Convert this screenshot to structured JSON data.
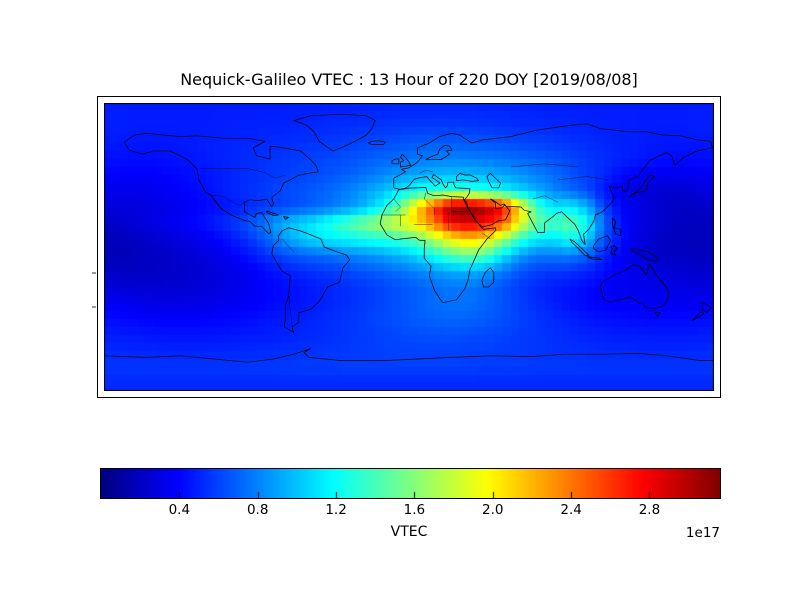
{
  "title": "Nequick-Galileo VTEC : 13 Hour of 220 DOY [2019/08/08]",
  "colorbar": {
    "label": "VTEC",
    "offset_text": "1e17",
    "ticks": [
      "0.4",
      "0.8",
      "1.2",
      "1.6",
      "2.0",
      "2.4",
      "2.8"
    ],
    "tick_values": [
      0.4,
      0.8,
      1.2,
      1.6,
      2.0,
      2.4,
      2.8
    ],
    "vmin": 0,
    "vmax": 3.16,
    "colormap": "jet"
  },
  "chart_data": {
    "type": "heatmap",
    "title": "Nequick-Galileo VTEC : 13 Hour of 220 DOY [2019/08/08]",
    "colormap": "jet",
    "projection": "equirectangular",
    "lon_range": [
      -180,
      180
    ],
    "lat_range": [
      -90,
      90
    ],
    "legend_position": "bottom",
    "grid": false,
    "units": "electrons/m^2, grid values in 1e16",
    "vmin": 0,
    "vmax": 31.6,
    "lon_centers_start": -175,
    "lon_step": 10,
    "lat_centers_start": 85,
    "lat_step": -10,
    "values": [
      [
        4.8,
        4.8,
        4.8,
        4.8,
        4.8,
        4.8,
        4.8,
        4.8,
        4.8,
        4.8,
        4.8,
        4.9,
        4.9,
        5,
        5,
        5.1,
        5.1,
        5.2,
        5.2,
        5.2,
        5.2,
        5.2,
        5.1,
        5.1,
        5,
        5,
        4.9,
        4.9,
        4.8,
        4.8,
        4.8,
        4.8,
        4.8,
        4.8,
        4.8,
        4.8
      ],
      [
        4.9,
        4.8,
        4.8,
        4.8,
        4.8,
        4.8,
        4.8,
        4.9,
        4.9,
        5,
        5,
        5.1,
        5.2,
        5.3,
        5.4,
        5.5,
        5.6,
        5.7,
        5.8,
        5.8,
        5.8,
        5.7,
        5.6,
        5.5,
        5.4,
        5.3,
        5.2,
        5.1,
        5,
        4.9,
        4.9,
        4.8,
        4.8,
        4.8,
        4.8,
        4.9
      ],
      [
        4.7,
        4.6,
        4.6,
        4.6,
        4.7,
        4.8,
        4.9,
        5,
        5.1,
        5.2,
        5.3,
        5.4,
        5.5,
        5.7,
        5.9,
        6.1,
        6.3,
        6.5,
        6.7,
        6.8,
        6.8,
        6.7,
        6.6,
        6.4,
        6.2,
        6,
        5.8,
        5.5,
        5.3,
        5.1,
        4.9,
        4.8,
        4.7,
        4.6,
        4.6,
        4.7
      ],
      [
        4.4,
        4.3,
        4.3,
        4.4,
        4.5,
        4.7,
        4.9,
        5.1,
        5.3,
        5.5,
        5.6,
        5.8,
        6,
        6.2,
        6.5,
        6.8,
        7.1,
        7.4,
        7.7,
        7.9,
        8,
        7.9,
        7.7,
        7.5,
        7.2,
        6.9,
        6.5,
        6.1,
        5.7,
        5.3,
        5,
        4.7,
        4.5,
        4.3,
        4.3,
        4.3
      ],
      [
        4,
        3.9,
        3.9,
        4,
        4.2,
        4.4,
        4.7,
        5,
        5.3,
        5.5,
        5.8,
        6,
        6.3,
        6.6,
        7,
        7.5,
        8.1,
        8.7,
        9.2,
        9.6,
        9.8,
        9.8,
        9.5,
        9.1,
        8.6,
        8,
        7.3,
        6.6,
        5.9,
        5.2,
        4.2,
        3.8,
        3.6,
        3.5,
        3.5,
        3.7
      ],
      [
        3.4,
        3.3,
        3.4,
        3.6,
        3.9,
        4.2,
        4.6,
        5,
        5.4,
        5.8,
        6.2,
        6.4,
        6.8,
        7.3,
        8,
        8.9,
        10,
        11.2,
        12.2,
        13,
        13.4,
        13.3,
        12.8,
        11.9,
        10.7,
        9.4,
        8.2,
        7.2,
        6.3,
        4.5,
        3.5,
        3,
        2.6,
        2.5,
        2.6,
        3
      ],
      [
        3,
        2.9,
        3,
        3.2,
        3.5,
        3.9,
        4.3,
        4.7,
        5.2,
        5.6,
        6,
        6.5,
        7,
        7.6,
        8.5,
        9.8,
        12,
        15.5,
        21,
        26,
        31,
        31.5,
        30.5,
        27.5,
        21,
        14,
        11,
        11.5,
        9.5,
        6,
        4,
        3.2,
        2.6,
        2.2,
        2.1,
        2.3
      ],
      [
        2.2,
        2.6,
        3,
        3.4,
        3.8,
        4.2,
        4.8,
        5.5,
        6.5,
        7.8,
        9.5,
        10.5,
        11.5,
        13,
        14.5,
        16,
        17.5,
        19,
        21,
        24,
        28,
        29,
        27.5,
        25.5,
        19.5,
        15,
        14,
        15,
        12.5,
        7,
        4.5,
        3.2,
        2.6,
        2.2,
        2,
        2
      ],
      [
        1.9,
        2,
        2.3,
        2.6,
        3,
        3.4,
        3.9,
        4.6,
        5.5,
        6.8,
        8.5,
        10,
        11,
        11.5,
        12,
        12.5,
        13,
        13.8,
        15,
        17.5,
        20,
        21.5,
        20.5,
        17,
        13.5,
        11.5,
        11,
        12.5,
        10.5,
        6.5,
        4.5,
        3.1,
        2.4,
        2,
        1.9,
        1.9
      ],
      [
        1.8,
        1.8,
        2,
        2.2,
        2.5,
        2.8,
        3.2,
        3.8,
        4.5,
        5.3,
        6.2,
        6.8,
        7.2,
        7.6,
        8,
        8.5,
        9,
        9.8,
        10.8,
        12.5,
        14.5,
        15.5,
        14.5,
        11.5,
        9,
        7.8,
        7.8,
        8,
        7,
        5,
        3.8,
        2.9,
        2.4,
        2.1,
        2,
        1.9
      ],
      [
        2.2,
        2.1,
        2.1,
        2.2,
        2.3,
        2.5,
        2.8,
        3.2,
        3.7,
        4.2,
        4.7,
        5.1,
        5.5,
        5.8,
        6.2,
        6.6,
        7,
        7.5,
        8,
        8.7,
        9.3,
        9.5,
        9,
        7.8,
        6.6,
        5.9,
        5.6,
        5.5,
        5,
        4.3,
        3.7,
        3.2,
        2.9,
        2.7,
        2.6,
        2.4
      ],
      [
        2.8,
        2.6,
        2.5,
        2.5,
        2.6,
        2.7,
        2.9,
        3.2,
        3.5,
        3.9,
        4.2,
        4.5,
        4.8,
        5.1,
        5.4,
        5.7,
        6.1,
        6.5,
        6.9,
        7.3,
        7.6,
        7.6,
        7.2,
        6.5,
        5.8,
        5.2,
        4.8,
        4.5,
        4.2,
        3.9,
        3.6,
        3.4,
        3.2,
        3.1,
        3,
        2.9
      ],
      [
        3.6,
        3.4,
        3.2,
        3.1,
        3.1,
        3.2,
        3.3,
        3.5,
        3.7,
        4,
        4.3,
        4.5,
        4.8,
        5.1,
        5.4,
        5.7,
        6.1,
        6.5,
        6.9,
        7.3,
        7.5,
        7.5,
        7.1,
        6.5,
        5.9,
        5.3,
        4.8,
        4.4,
        4.1,
        3.9,
        3.8,
        3.7,
        3.6,
        3.6,
        3.6,
        3.6
      ],
      [
        4.3,
        4.1,
        4,
        3.9,
        3.9,
        3.9,
        4,
        4.1,
        4.3,
        4.5,
        4.7,
        4.9,
        5.1,
        5.4,
        5.6,
        5.9,
        6.2,
        6.5,
        6.8,
        7,
        7.1,
        7,
        6.8,
        6.4,
        6,
        5.6,
        5.2,
        4.9,
        4.6,
        4.4,
        4.3,
        4.2,
        4.2,
        4.2,
        4.2,
        4.3
      ],
      [
        4.8,
        4.7,
        4.6,
        4.5,
        4.5,
        4.5,
        4.5,
        4.6,
        4.7,
        4.8,
        4.9,
        5.1,
        5.2,
        5.4,
        5.6,
        5.8,
        6,
        6.2,
        6.3,
        6.4,
        6.4,
        6.3,
        6.2,
        6,
        5.8,
        5.6,
        5.4,
        5.2,
        5,
        4.9,
        4.8,
        4.8,
        4.7,
        4.7,
        4.7,
        4.8
      ],
      [
        5.2,
        5.1,
        5.1,
        5,
        5,
        5,
        5,
        5.1,
        5.1,
        5.2,
        5.3,
        5.4,
        5.5,
        5.6,
        5.7,
        5.8,
        5.9,
        6,
        6,
        6,
        6,
        5.9,
        5.9,
        5.8,
        5.7,
        5.6,
        5.5,
        5.4,
        5.3,
        5.2,
        5.2,
        5.1,
        5.1,
        5.1,
        5.1,
        5.2
      ],
      [
        5.6,
        5.6,
        5.6,
        5.6,
        5.6,
        5.6,
        5.6,
        5.6,
        5.7,
        5.7,
        5.7,
        5.8,
        5.8,
        5.8,
        5.9,
        5.9,
        5.9,
        5.9,
        5.9,
        5.9,
        5.9,
        5.9,
        5.8,
        5.8,
        5.8,
        5.7,
        5.7,
        5.7,
        5.6,
        5.6,
        5.6,
        5.6,
        5.6,
        5.6,
        5.6,
        5.6
      ],
      [
        5.2,
        5.2,
        5.2,
        5.2,
        5.2,
        5.2,
        5.2,
        5.2,
        5.2,
        5.2,
        5.2,
        5.2,
        5.2,
        5.2,
        5.2,
        5.2,
        5.2,
        5.2,
        5.2,
        5.2,
        5.2,
        5.2,
        5.2,
        5.2,
        5.2,
        5.2,
        5.2,
        5.2,
        5.2,
        5.2,
        5.2,
        5.2,
        5.2,
        5.2,
        5.2,
        5.2
      ]
    ]
  }
}
